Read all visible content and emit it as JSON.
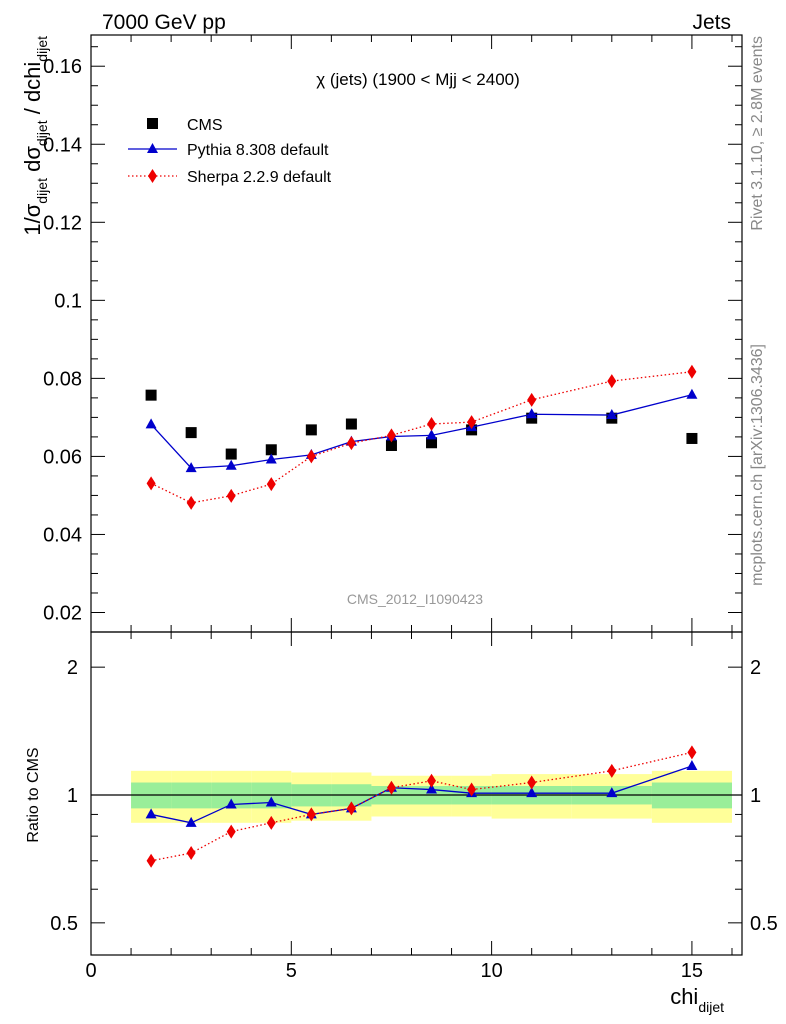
{
  "header": {
    "left": "7000 GeV pp",
    "right": "Jets"
  },
  "side": {
    "rivet": "Rivet 3.1.10, ≥ 2.8M events",
    "mcplots": "mcplots.cern.ch [arXiv:1306.3436]"
  },
  "chart_data": {
    "type": "line",
    "title": "χ (jets) (1900 < Mjj < 2400)",
    "watermark": "CMS_2012_I1090423",
    "ylabel_parts": [
      "1/σ",
      "dijet",
      " dσ",
      "dijet",
      " / dchi",
      "dijet"
    ],
    "xlabel_main": "chi",
    "xlabel_sub": "dijet",
    "ratio_ylabel": "Ratio to CMS",
    "xlim": [
      0,
      16.25
    ],
    "ylim": [
      0.015,
      0.168
    ],
    "ratio_ylim": [
      0.42,
      2.42
    ],
    "x_ticks": [
      0,
      5,
      10,
      15
    ],
    "x_tick_labels": [
      "0",
      "5",
      "10",
      "15"
    ],
    "y_ticks": [
      0.02,
      0.04,
      0.06,
      0.08,
      0.1,
      0.12,
      0.14,
      0.16
    ],
    "y_tick_labels": [
      "0.02",
      "0.04",
      "0.06",
      "0.08",
      "0.1",
      "0.12",
      "0.14",
      "0.16"
    ],
    "ratio_ticks": [
      0.5,
      1,
      2
    ],
    "ratio_tick_labels": [
      "0.5",
      "1",
      "2"
    ],
    "legend_position": "top-left",
    "bins": [
      [
        1,
        2
      ],
      [
        2,
        3
      ],
      [
        3,
        4
      ],
      [
        4,
        5
      ],
      [
        5,
        6
      ],
      [
        6,
        7
      ],
      [
        7,
        8
      ],
      [
        8,
        9
      ],
      [
        9,
        10
      ],
      [
        10,
        12
      ],
      [
        12,
        14
      ],
      [
        14,
        16
      ]
    ],
    "band_outer": [
      0.14,
      0.14,
      0.14,
      0.14,
      0.13,
      0.13,
      0.11,
      0.11,
      0.11,
      0.12,
      0.12,
      0.14
    ],
    "band_inner": [
      0.07,
      0.07,
      0.07,
      0.07,
      0.06,
      0.06,
      0.05,
      0.05,
      0.05,
      0.05,
      0.05,
      0.07
    ],
    "x": [
      1.5,
      2.5,
      3.5,
      4.5,
      5.5,
      6.5,
      7.5,
      8.5,
      9.5,
      11,
      13,
      15
    ],
    "series": [
      {
        "name": "CMS",
        "color": "#000000",
        "marker": "square",
        "values": [
          0.0757,
          0.0661,
          0.0606,
          0.0617,
          0.0668,
          0.0683,
          0.0628,
          0.0635,
          0.0668,
          0.0698,
          0.0698,
          0.0646
        ],
        "ratio": [
          1,
          1,
          1,
          1,
          1,
          1,
          1,
          1,
          1,
          1,
          1,
          1
        ]
      },
      {
        "name": "Pythia 8.308 default",
        "color": "#0000cc",
        "marker": "triangle",
        "line": "solid",
        "values": [
          0.0682,
          0.057,
          0.0576,
          0.0592,
          0.0604,
          0.0638,
          0.0651,
          0.0654,
          0.0675,
          0.0708,
          0.0706,
          0.0758
        ],
        "ratio": [
          0.9,
          0.86,
          0.95,
          0.96,
          0.9,
          0.93,
          1.04,
          1.03,
          1.01,
          1.01,
          1.01,
          1.17
        ]
      },
      {
        "name": "Sherpa 2.2.9 default",
        "color": "#ee0000",
        "marker": "diamond",
        "line": "dotted",
        "values": [
          0.0531,
          0.0481,
          0.0499,
          0.0529,
          0.06,
          0.0634,
          0.0654,
          0.0683,
          0.0688,
          0.0745,
          0.0793,
          0.0817
        ],
        "ratio": [
          0.7,
          0.73,
          0.82,
          0.86,
          0.9,
          0.93,
          1.04,
          1.08,
          1.03,
          1.07,
          1.14,
          1.26
        ]
      }
    ]
  }
}
